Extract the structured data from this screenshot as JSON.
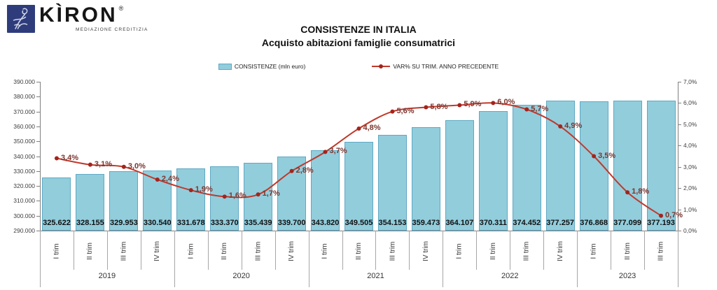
{
  "logo": {
    "brand": "KÌRON",
    "registered": "®",
    "tagline": "MEDIAZIONE CREDITIZIA"
  },
  "title": "CONSISTENZE IN ITALIA",
  "subtitle": "Acquisto abitazioni famiglie consumatrici",
  "legend": {
    "bars": "CONSISTENZE (mln euro)",
    "line": "VAR% SU TRIM. ANNO PRECEDENTE"
  },
  "colors": {
    "bar_fill": "#92CDDC",
    "bar_border": "#5FA8C4",
    "line": "#C0392B",
    "marker": "#A3241C",
    "line_label": "#7A362F",
    "axis_line": "#808080",
    "separator": "#A6A6A6",
    "logo_navy": "#2E3C7C"
  },
  "chart_data": {
    "type": "combo (bar + line)",
    "title": "CONSISTENZE IN ITALIA",
    "subtitle": "Acquisto abitazioni famiglie consumatrici",
    "categories": [
      "I trim",
      "II trim",
      "III trim",
      "IV trim",
      "I trim",
      "II trim",
      "III trim",
      "IV trim",
      "I trim",
      "II trim",
      "III trim",
      "IV trim",
      "I trim",
      "II trim",
      "III trim",
      "IV trim",
      "I trim",
      "II trim",
      "III trim"
    ],
    "year_groups": [
      {
        "label": "2019",
        "count": 4
      },
      {
        "label": "2020",
        "count": 4
      },
      {
        "label": "2021",
        "count": 4
      },
      {
        "label": "2022",
        "count": 4
      },
      {
        "label": "2023",
        "count": 3
      }
    ],
    "series": [
      {
        "name": "CONSISTENZE (mln euro)",
        "type": "bar",
        "axis": "left",
        "values": [
          325622,
          328155,
          329953,
          330540,
          331678,
          333370,
          335439,
          339700,
          343820,
          349505,
          354153,
          359473,
          364107,
          370311,
          374452,
          377257,
          376868,
          377099,
          377193
        ],
        "labels": [
          "325.622",
          "328.155",
          "329.953",
          "330.540",
          "331.678",
          "333.370",
          "335.439",
          "339.700",
          "343.820",
          "349.505",
          "354.153",
          "359.473",
          "364.107",
          "370.311",
          "374.452",
          "377.257",
          "376.868",
          "377.099",
          "377.193"
        ]
      },
      {
        "name": "VAR% SU TRIM. ANNO PRECEDENTE",
        "type": "line",
        "axis": "right",
        "values": [
          3.4,
          3.1,
          3.0,
          2.4,
          1.9,
          1.6,
          1.7,
          2.8,
          3.7,
          4.8,
          5.6,
          5.8,
          5.9,
          6.0,
          5.7,
          4.9,
          3.5,
          1.8,
          0.7
        ],
        "labels": [
          "3,4%",
          "3,1%",
          "3,0%",
          "2,4%",
          "1,9%",
          "1,6%",
          "1,7%",
          "2,8%",
          "3,7%",
          "4,8%",
          "5,6%",
          "5,8%",
          "5,9%",
          "6,0%",
          "5,7%",
          "4,9%",
          "3,5%",
          "1,8%",
          "0,7%"
        ]
      }
    ],
    "left_axis": {
      "min": 290000,
      "max": 390000,
      "step": 10000,
      "tick_labels": [
        "390.000",
        "380.000",
        "370.000",
        "360.000",
        "350.000",
        "340.000",
        "330.000",
        "320.000",
        "310.000",
        "300.000",
        "290.000"
      ]
    },
    "right_axis": {
      "min": 0,
      "max": 7,
      "step": 1,
      "tick_labels": [
        "7,0%",
        "6,0%",
        "5,0%",
        "4,0%",
        "3,0%",
        "2,0%",
        "1,0%",
        "0,0%"
      ]
    },
    "grid": "off",
    "legend_position": "top"
  }
}
